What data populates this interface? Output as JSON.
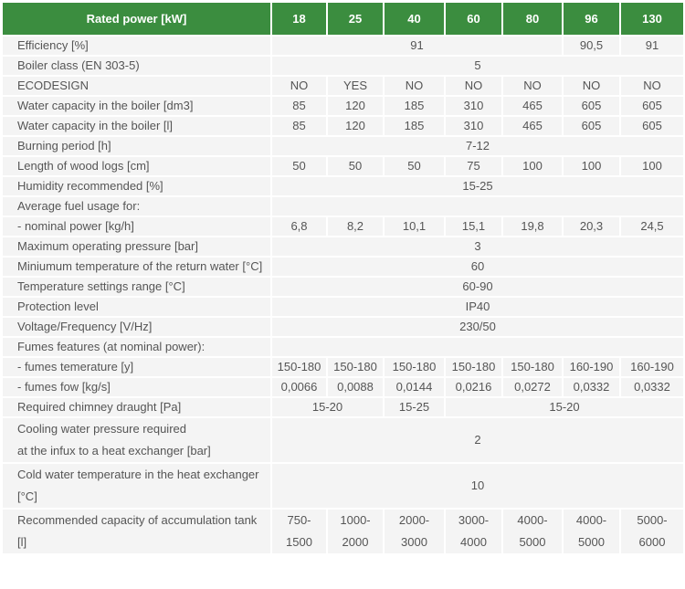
{
  "header": {
    "label": "Rated power [kW]",
    "columns": [
      "18",
      "25",
      "40",
      "60",
      "80",
      "96",
      "130"
    ]
  },
  "rows": [
    {
      "label": "Efficiency [%]",
      "cells": [
        {
          "v": "91",
          "span": 5
        },
        {
          "v": "90,5",
          "span": 1
        },
        {
          "v": "91",
          "span": 1
        }
      ]
    },
    {
      "label": "Boiler class (EN 303-5)",
      "cells": [
        {
          "v": "5",
          "span": 7
        }
      ]
    },
    {
      "label": "ECODESIGN",
      "cells": [
        {
          "v": "NO"
        },
        {
          "v": "YES"
        },
        {
          "v": "NO"
        },
        {
          "v": "NO"
        },
        {
          "v": "NO"
        },
        {
          "v": "NO"
        },
        {
          "v": "NO"
        }
      ]
    },
    {
      "label": "Water capacity in the boiler [dm3]",
      "cells": [
        {
          "v": "85"
        },
        {
          "v": "120"
        },
        {
          "v": "185"
        },
        {
          "v": "310"
        },
        {
          "v": "465"
        },
        {
          "v": "605"
        },
        {
          "v": "605"
        }
      ]
    },
    {
      "label": "Water capacity in the boiler [l]",
      "cells": [
        {
          "v": "85"
        },
        {
          "v": "120"
        },
        {
          "v": "185"
        },
        {
          "v": "310"
        },
        {
          "v": "465"
        },
        {
          "v": "605"
        },
        {
          "v": "605"
        }
      ]
    },
    {
      "label": "Burning period [h]",
      "cells": [
        {
          "v": "7-12",
          "span": 7
        }
      ]
    },
    {
      "label": "Length of wood logs [cm]",
      "cells": [
        {
          "v": "50"
        },
        {
          "v": "50"
        },
        {
          "v": "50"
        },
        {
          "v": "75"
        },
        {
          "v": "100"
        },
        {
          "v": "100"
        },
        {
          "v": "100"
        }
      ]
    },
    {
      "label": "Humidity recommended [%]",
      "cells": [
        {
          "v": "15-25",
          "span": 7
        }
      ]
    },
    {
      "label": "Average fuel usage for:",
      "cells": [
        {
          "v": "",
          "span": 7
        }
      ]
    },
    {
      "label": "- nominal power [kg/h]",
      "cells": [
        {
          "v": "6,8"
        },
        {
          "v": "8,2"
        },
        {
          "v": "10,1"
        },
        {
          "v": "15,1"
        },
        {
          "v": "19,8"
        },
        {
          "v": "20,3"
        },
        {
          "v": "24,5"
        }
      ]
    },
    {
      "label": "Maximum operating pressure [bar]",
      "cells": [
        {
          "v": "3",
          "span": 7
        }
      ]
    },
    {
      "label": "Miniumum temperature of the return water [°C]",
      "cells": [
        {
          "v": "60",
          "span": 7
        }
      ]
    },
    {
      "label": "Temperature settings range [°C]",
      "cells": [
        {
          "v": "60-90",
          "span": 7
        }
      ]
    },
    {
      "label": "Protection level",
      "cells": [
        {
          "v": "IP40",
          "span": 7
        }
      ]
    },
    {
      "label": "Voltage/Frequency [V/Hz]",
      "cells": [
        {
          "v": "230/50",
          "span": 7
        }
      ]
    },
    {
      "label": "Fumes features (at nominal power):",
      "cells": [
        {
          "v": "",
          "span": 7
        }
      ]
    },
    {
      "label": "- fumes temerature [y]",
      "cells": [
        {
          "v": "150-180"
        },
        {
          "v": "150-180"
        },
        {
          "v": "150-180"
        },
        {
          "v": "150-180"
        },
        {
          "v": "150-180"
        },
        {
          "v": "160-190"
        },
        {
          "v": "160-190"
        }
      ]
    },
    {
      "label": "- fumes fow [kg/s]",
      "cells": [
        {
          "v": "0,0066"
        },
        {
          "v": "0,0088"
        },
        {
          "v": "0,0144"
        },
        {
          "v": "0,0216"
        },
        {
          "v": "0,0272"
        },
        {
          "v": "0,0332"
        },
        {
          "v": "0,0332"
        }
      ]
    },
    {
      "label": "Required chimney draught [Pa]",
      "cells": [
        {
          "v": "15-20",
          "span": 2
        },
        {
          "v": "15-25",
          "span": 1
        },
        {
          "v": "15-20",
          "span": 4
        }
      ]
    },
    {
      "label": "Cooling water pressure required\nat the infux to a heat exchanger [bar]",
      "multiline": true,
      "cells": [
        {
          "v": "2",
          "span": 7
        }
      ]
    },
    {
      "label": "Cold water temperature in the heat exchanger\n[°C]",
      "multiline": true,
      "cells": [
        {
          "v": "10",
          "span": 7
        }
      ]
    },
    {
      "label": "Recommended capacity of accumulation tank [l]",
      "multiline": true,
      "cells": [
        {
          "v": "750-\n1500"
        },
        {
          "v": "1000-\n2000"
        },
        {
          "v": "2000-\n3000"
        },
        {
          "v": "3000-\n4000"
        },
        {
          "v": "4000-\n5000"
        },
        {
          "v": "4000-\n5000"
        },
        {
          "v": "5000-\n6000"
        }
      ]
    }
  ]
}
